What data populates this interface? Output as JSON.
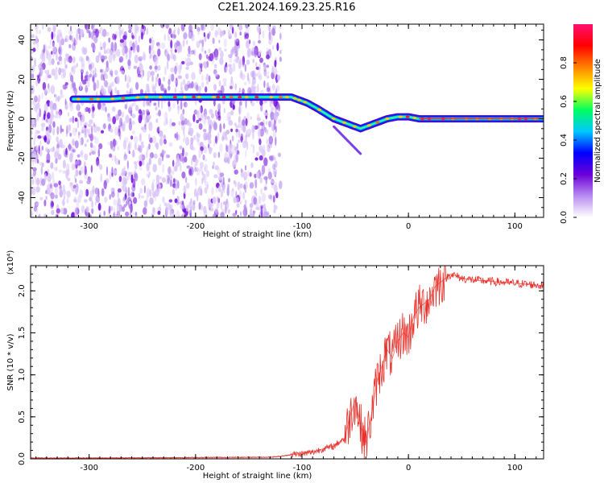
{
  "title": "C2E1.2024.169.23.25.R16",
  "chart_data": [
    {
      "type": "heatmap",
      "xlabel": "Height of straight line (km)",
      "ylabel": "Frequency (Hz)",
      "xlim": [
        -355,
        127
      ],
      "ylim": [
        -50,
        48
      ],
      "xticks": [
        -300,
        -200,
        -100,
        0,
        100
      ],
      "yticks": [
        -40,
        -20,
        0,
        20,
        40
      ],
      "colorbar": {
        "label": "Normalized spectral amplitude",
        "range": [
          0.0,
          1.0
        ],
        "ticks": [
          "0.0",
          "0.2",
          "0.4",
          "0.6",
          "0.8"
        ],
        "tick_values": [
          0.0,
          0.2,
          0.4,
          0.6,
          0.8
        ],
        "colormap": [
          "#ffffff",
          "#b98cf0",
          "#6a00d8",
          "#0000ff",
          "#00c8ff",
          "#00ff60",
          "#ffff00",
          "#ff8000",
          "#ff0000",
          "#ff1070"
        ]
      },
      "ridge": {
        "x": [
          -315,
          -280,
          -250,
          -200,
          -150,
          -110,
          -95,
          -85,
          -70,
          -55,
          -45,
          -35,
          -20,
          -10,
          0,
          10,
          50,
          127
        ],
        "y": [
          10,
          10,
          11,
          11,
          11,
          11,
          8,
          5,
          0,
          -3,
          -5,
          -3,
          0,
          1,
          1,
          0,
          0,
          0
        ]
      },
      "noise_region_x": [
        -355,
        -120
      ]
    },
    {
      "type": "line",
      "xlabel": "Height of straight line (km)",
      "ylabel": "SNR (10 * v/v)",
      "y_multiplier": "(x10⁴)",
      "xlim": [
        -355,
        127
      ],
      "ylim": [
        0,
        2.3
      ],
      "xticks": [
        -300,
        -200,
        -100,
        0,
        100
      ],
      "yticks": [
        "0.0",
        "0.5",
        "1.0",
        "1.5",
        "2.0"
      ],
      "ytick_values": [
        0.0,
        0.5,
        1.0,
        1.5,
        2.0
      ],
      "color": "#e8302a",
      "x": [
        -355,
        -300,
        -200,
        -130,
        -120,
        -110,
        -100,
        -90,
        -80,
        -70,
        -60,
        -55,
        -50,
        -45,
        -40,
        -35,
        -30,
        -25,
        -20,
        -15,
        -10,
        -5,
        0,
        5,
        10,
        15,
        20,
        25,
        30,
        35,
        40,
        50,
        60,
        70,
        80,
        90,
        100,
        110,
        120,
        127
      ],
      "y": [
        0.01,
        0.01,
        0.015,
        0.02,
        0.03,
        0.05,
        0.06,
        0.08,
        0.12,
        0.15,
        0.25,
        0.5,
        0.7,
        0.4,
        0.2,
        0.5,
        0.9,
        1.1,
        1.3,
        1.2,
        1.4,
        1.5,
        1.45,
        1.7,
        1.8,
        1.85,
        1.9,
        2.05,
        2.1,
        2.15,
        2.2,
        2.15,
        2.13,
        2.12,
        2.11,
        2.1,
        2.09,
        2.08,
        2.07,
        2.06
      ]
    }
  ]
}
